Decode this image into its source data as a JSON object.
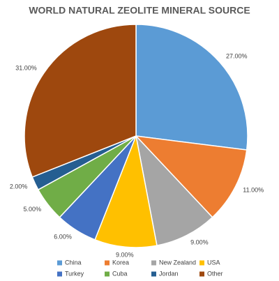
{
  "chart_data": {
    "type": "pie",
    "title": "WORLD NATURAL ZEOLITE MINERAL SOURCE",
    "categories": [
      "China",
      "Korea",
      "New Zealand",
      "USA",
      "Turkey",
      "Cuba",
      "Jordan",
      "Other"
    ],
    "values": [
      27,
      11,
      9,
      9,
      6,
      5,
      2,
      31
    ],
    "value_labels": [
      "27.00%",
      "11.00%",
      "9.00%",
      "9.00%",
      "6.00%",
      "5.00%",
      "2.00%",
      "31.00%"
    ],
    "colors": [
      "#5b9bd5",
      "#ed7d31",
      "#a5a5a5",
      "#ffc000",
      "#4472c4",
      "#70ad47",
      "#255e91",
      "#9e480e"
    ],
    "legend": "bottom"
  }
}
